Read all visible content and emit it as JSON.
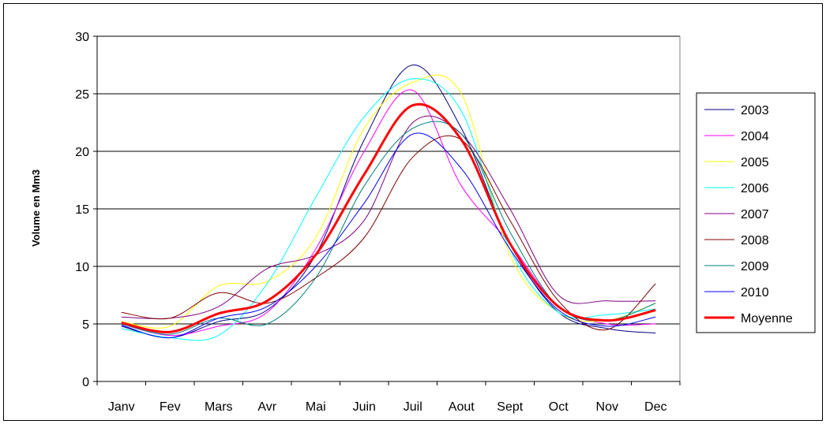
{
  "chart_data": {
    "type": "line",
    "title": "",
    "xlabel": "",
    "ylabel": "Volume en Mm3",
    "ylim": [
      0,
      30
    ],
    "yticks": [
      0,
      5,
      10,
      15,
      20,
      25,
      30
    ],
    "grid": "horizontal",
    "legend_position": "right",
    "categories": [
      "Janv",
      "Fev",
      "Mars",
      "Avr",
      "Mai",
      "Juin",
      "Juil",
      "Aout",
      "Sept",
      "Oct",
      "Nov",
      "Dec"
    ],
    "series": [
      {
        "name": "2003",
        "color": "#000080",
        "width": 1,
        "values": [
          4.8,
          3.8,
          5.2,
          6.2,
          11.0,
          21.0,
          27.5,
          22.0,
          12.0,
          6.0,
          4.6,
          4.2
        ]
      },
      {
        "name": "2004",
        "color": "#ff00ff",
        "width": 1,
        "values": [
          5.0,
          4.0,
          4.8,
          6.0,
          11.5,
          20.0,
          25.3,
          17.0,
          12.0,
          6.5,
          5.0,
          5.0
        ]
      },
      {
        "name": "2005",
        "color": "#ffff00",
        "width": 1,
        "values": [
          5.2,
          4.8,
          8.3,
          8.7,
          12.5,
          22.0,
          26.0,
          25.0,
          11.0,
          6.0,
          5.3,
          6.8
        ]
      },
      {
        "name": "2006",
        "color": "#00ffff",
        "width": 1,
        "values": [
          4.6,
          3.8,
          4.0,
          8.5,
          16.0,
          23.0,
          26.3,
          23.5,
          11.5,
          6.0,
          5.8,
          6.3
        ]
      },
      {
        "name": "2007",
        "color": "#800080",
        "width": 1,
        "values": [
          5.6,
          5.5,
          6.5,
          9.8,
          11.0,
          14.0,
          22.5,
          21.5,
          15.0,
          7.5,
          7.0,
          7.0
        ]
      },
      {
        "name": "2008",
        "color": "#800000",
        "width": 1,
        "values": [
          6.0,
          5.5,
          7.7,
          6.8,
          9.0,
          12.5,
          19.5,
          21.0,
          14.0,
          7.0,
          4.5,
          8.5
        ]
      },
      {
        "name": "2009",
        "color": "#008080",
        "width": 1,
        "values": [
          5.0,
          4.1,
          5.5,
          5.0,
          9.0,
          17.0,
          22.0,
          21.5,
          13.0,
          6.5,
          5.3,
          6.8
        ]
      },
      {
        "name": "2010",
        "color": "#0000ff",
        "width": 1,
        "values": [
          4.9,
          3.8,
          5.5,
          6.5,
          10.0,
          15.5,
          21.5,
          18.5,
          11.5,
          6.2,
          4.8,
          5.6
        ]
      },
      {
        "name": "Moyenne",
        "color": "#ff0000",
        "width": 3,
        "values": [
          5.1,
          4.3,
          5.9,
          7.0,
          11.0,
          18.0,
          24.0,
          21.0,
          12.0,
          6.5,
          5.3,
          6.2
        ]
      }
    ]
  }
}
